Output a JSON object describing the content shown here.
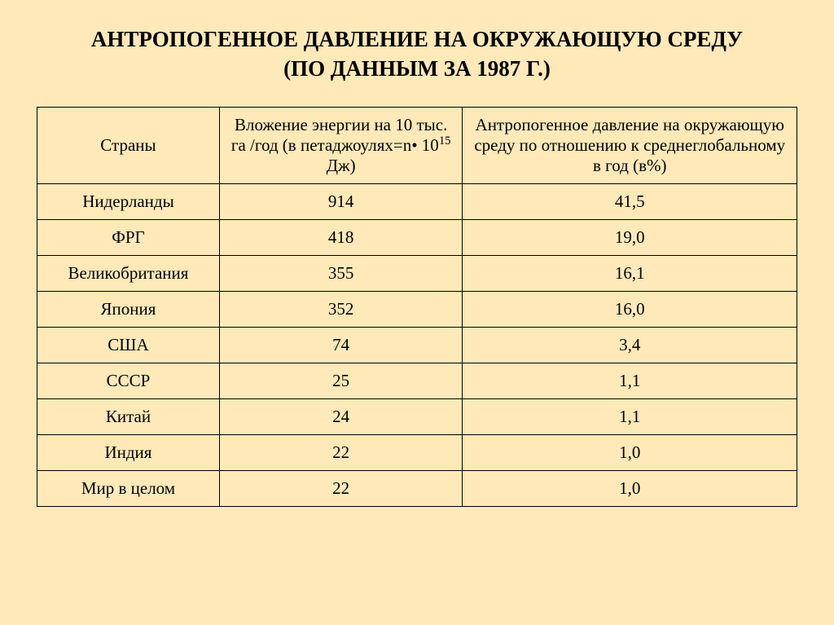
{
  "title_line1": "АНТРОПОГЕННОЕ ДАВЛЕНИЕ НА ОКРУЖАЮЩУЮ СРЕДУ",
  "title_line2": "(ПО ДАННЫМ ЗА 1987 Г.)",
  "table": {
    "type": "table",
    "background_color": "#ffe9b9",
    "border_color": "#000000",
    "text_color": "#000000",
    "header_fontsize": 21,
    "cell_fontsize": 21,
    "column_widths_pct": [
      24,
      32,
      44
    ],
    "columns": {
      "c1": "Страны",
      "c2_pre": "Вложение энергии на 10 тыс. га /год (в петаджоулях=n• 10",
      "c2_sup": "15",
      "c2_post": " Дж)",
      "c3": "Антропогенное давление на окружающую среду по отношению к среднеглобальному в год (в%)"
    },
    "rows": [
      {
        "country": "Нидерланды",
        "energy": "914",
        "pressure": "41,5"
      },
      {
        "country": "ФРГ",
        "energy": "418",
        "pressure": "19,0"
      },
      {
        "country": "Великобритания",
        "energy": "355",
        "pressure": "16,1"
      },
      {
        "country": "Япония",
        "energy": "352",
        "pressure": "16,0"
      },
      {
        "country": "США",
        "energy": "74",
        "pressure": "3,4"
      },
      {
        "country": "СССР",
        "energy": "25",
        "pressure": "1,1"
      },
      {
        "country": "Китай",
        "energy": "24",
        "pressure": "1,1"
      },
      {
        "country": "Индия",
        "energy": "22",
        "pressure": "1,0"
      },
      {
        "country": "Мир в целом",
        "energy": "22",
        "pressure": "1,0"
      }
    ]
  }
}
